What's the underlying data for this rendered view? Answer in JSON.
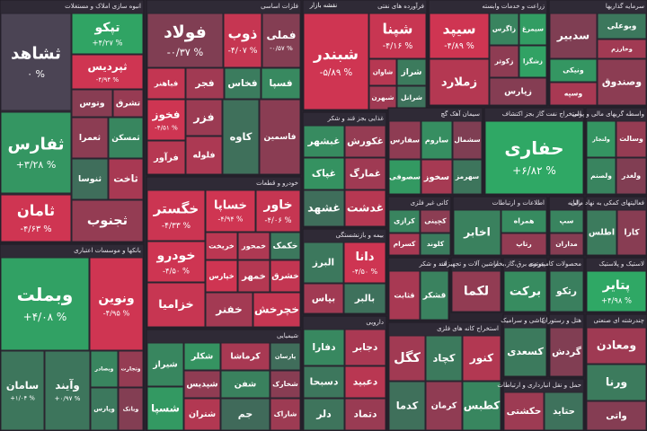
{
  "chart_data": {
    "type": "treemap",
    "title": "نقشه بازار",
    "colors": {
      "positive": "#2fa865",
      "negative": "#cf3552",
      "neutral": "#4b4454",
      "background": "#2f2a36"
    },
    "sectors": [
      {
        "name": "انبوه سازی املاک و مستغلات",
        "tiles": [
          {
            "name": "ثشاهد",
            "value": 0,
            "value_label": "۰ %"
          },
          {
            "name": "تپکو",
            "value": 4.27,
            "value_label": "+۴/۲۷ %"
          },
          {
            "name": "ثپردیس",
            "value": -4.94,
            "value_label": "-۴/۹۴ %"
          },
          {
            "name": "وتوس",
            "value": -0.8
          },
          {
            "name": "تشرق",
            "value": -1.6
          },
          {
            "name": "ثفارس",
            "value": 3.28,
            "value_label": "+۳/۲۸ %"
          },
          {
            "name": "ثامان",
            "value": -4.63,
            "value_label": "-۴/۶۳ %"
          },
          {
            "name": "ثعمرا",
            "value": -1
          },
          {
            "name": "ثمسکن",
            "value": 2.2
          },
          {
            "name": "ثنوسا",
            "value": 0.5
          },
          {
            "name": "ثاخت",
            "value": -2.5
          },
          {
            "name": "ثجنوب",
            "value": -1.4
          }
        ]
      },
      {
        "name": "بانکها و موسسات اعتباری",
        "tiles": [
          {
            "name": "وبملت",
            "value": 4.08,
            "value_label": "+۴/۰۸ %"
          },
          {
            "name": "ونوین",
            "value": -4.95,
            "value_label": "-۴/۹۵ %"
          },
          {
            "name": "سامان",
            "value": 1.04,
            "value_label": "+۱/۰۴ %"
          },
          {
            "name": "وآیند",
            "value": 0.97,
            "value_label": "+۰/۹۷ %"
          },
          {
            "name": "وبصادر",
            "value": 2.1
          },
          {
            "name": "وتجارت",
            "value": -1.5
          },
          {
            "name": "وپارس",
            "value": 1.2
          },
          {
            "name": "وبانک",
            "value": -0.5
          }
        ]
      },
      {
        "name": "فلزات اساسی",
        "tiles": [
          {
            "name": "فولاد",
            "value": -0.37,
            "value_label": "-۰/۳۷ %"
          },
          {
            "name": "ذوب",
            "value": -4.07,
            "value_label": "-۴/۰۷ %"
          },
          {
            "name": "فملی",
            "value": -0.57,
            "value_label": "-۰/۵۷ %"
          },
          {
            "name": "فباهنر",
            "value": -3.9
          },
          {
            "name": "فجر",
            "value": -2.1
          },
          {
            "name": "فخاس",
            "value": 1.5
          },
          {
            "name": "فسپا",
            "value": 2.4
          },
          {
            "name": "فخوز",
            "value": -4.51,
            "value_label": "-۴/۵۱ %"
          },
          {
            "name": "فرآور",
            "value": -3.2
          },
          {
            "name": "فزر",
            "value": -1.8
          },
          {
            "name": "فلوله",
            "value": -2.7
          },
          {
            "name": "کاوه",
            "value": 0.6
          },
          {
            "name": "فاسمین",
            "value": -0.9
          }
        ]
      },
      {
        "name": "خودرو و قطعات",
        "tiles": [
          {
            "name": "خگستر",
            "value": -4.33,
            "value_label": "-۴/۳۳ %"
          },
          {
            "name": "خساپا",
            "value": -4.94,
            "value_label": "-۴/۹۴ %"
          },
          {
            "name": "خاور",
            "value": -4.06,
            "value_label": "-۴/۰۶ %"
          },
          {
            "name": "خودرو",
            "value": -4.5,
            "value_label": "-۴/۵۰ %"
          },
          {
            "name": "خزامیا",
            "value": -4.1
          },
          {
            "name": "خریخت",
            "value": -3.5
          },
          {
            "name": "خمحور",
            "value": -2.8
          },
          {
            "name": "خکمک",
            "value": 1.2
          },
          {
            "name": "خپارس",
            "value": -4.7
          },
          {
            "name": "خمهر",
            "value": -3.1
          },
          {
            "name": "خشرق",
            "value": -3.9
          },
          {
            "name": "خفنر",
            "value": -2.2
          },
          {
            "name": "خچرخش",
            "value": -4
          }
        ]
      },
      {
        "name": "شیمیایی",
        "tiles": [
          {
            "name": "شیراز",
            "value": 2.2
          },
          {
            "name": "شکلر",
            "value": 3.1
          },
          {
            "name": "پارسان",
            "value": 0.4
          },
          {
            "name": "شپدیس",
            "value": -1.2
          },
          {
            "name": "کرماشا",
            "value": -2.5
          },
          {
            "name": "شفن",
            "value": 1.8
          },
          {
            "name": "شخارک",
            "value": -0.8
          },
          {
            "name": "شسپا",
            "value": 3.5
          },
          {
            "name": "شتران",
            "value": -3
          },
          {
            "name": "جم",
            "value": 0.2
          },
          {
            "name": "شاراک",
            "value": -1.9
          }
        ]
      },
      {
        "name": "فرآورده های نفتی",
        "tiles": [
          {
            "name": "شبندر",
            "value": -5.89,
            "value_label": "-۵/۸۹ %"
          },
          {
            "name": "شپنا",
            "value": -4.16,
            "value_label": "-۴/۱۶ %"
          },
          {
            "name": "شاوان",
            "value": -3.2
          },
          {
            "name": "شراز",
            "value": 1.4
          },
          {
            "name": "شبهرن",
            "value": -2
          },
          {
            "name": "شرانل",
            "value": 0.8
          }
        ]
      },
      {
        "name": "زراعت و خدمات وابسته",
        "tiles": [
          {
            "name": "سیپد",
            "value": -4.89,
            "value_label": "-۴/۸۹ %"
          },
          {
            "name": "زملارد",
            "value": -3.1
          },
          {
            "name": "زاگرس",
            "value": 2
          },
          {
            "name": "سیمرغ",
            "value": 3.8
          },
          {
            "name": "زکوثر",
            "value": -1.1
          },
          {
            "name": "زشگزا",
            "value": 4.1
          },
          {
            "name": "زپارس",
            "value": -0.6
          }
        ]
      },
      {
        "name": "سرمایه گذاریها",
        "tiles": [
          {
            "name": "سدبیر",
            "value": -0.3
          },
          {
            "name": "وبوعلی",
            "value": 1.2
          },
          {
            "name": "وخارزم",
            "value": -2.1
          },
          {
            "name": "ونیکی",
            "value": 3.3
          },
          {
            "name": "وسپه",
            "value": -2.5
          },
          {
            "name": "وصندوق",
            "value": -1
          }
        ]
      },
      {
        "name": "استخراج نفت گاز بجز اکتشاف",
        "tiles": [
          {
            "name": "حفاری",
            "value": 6.82,
            "value_label": "+۶/۸۲ %"
          }
        ]
      },
      {
        "name": "واسطه گریهای مالی و پولی",
        "tiles": [
          {
            "name": "ولتجار",
            "value": 3.2
          },
          {
            "name": "وسالت",
            "value": -1.5
          },
          {
            "name": "ولصنم",
            "value": 2
          },
          {
            "name": "ولغدر",
            "value": -0.4
          }
        ]
      },
      {
        "name": "غذایی بجز قند و شکر",
        "tiles": [
          {
            "name": "غبشهر",
            "value": 2.5
          },
          {
            "name": "غکورش",
            "value": -1.5
          },
          {
            "name": "غپاک",
            "value": 3
          },
          {
            "name": "غمارگ",
            "value": -2
          },
          {
            "name": "غشهد",
            "value": 0.5
          },
          {
            "name": "غدشت",
            "value": -3.2
          }
        ]
      },
      {
        "name": "سیمان آهک گچ",
        "tiles": [
          {
            "name": "سفارس",
            "value": -1.1
          },
          {
            "name": "ساروم",
            "value": 2.7
          },
          {
            "name": "سشمال",
            "value": -0.3
          },
          {
            "name": "سصوفی",
            "value": 3.5
          },
          {
            "name": "سخوز",
            "value": -2.4
          },
          {
            "name": "سهرمز",
            "value": 1
          }
        ]
      },
      {
        "name": "کانی غیر فلزی",
        "tiles": [
          {
            "name": "کرازی",
            "value": 2
          },
          {
            "name": "کچینی",
            "value": -1
          },
          {
            "name": "کسرام",
            "value": -2.5
          },
          {
            "name": "کلوند",
            "value": 1.5
          }
        ]
      },
      {
        "name": "اطلاعات و ارتباطات",
        "tiles": [
          {
            "name": "اخابر",
            "value": 1.8
          },
          {
            "name": "همراه",
            "value": 2.5
          },
          {
            "name": "رتاپ",
            "value": -1.3
          }
        ]
      },
      {
        "name": "رایانه",
        "tiles": [
          {
            "name": "سپ",
            "value": 2
          },
          {
            "name": "مداران",
            "value": -0.7
          }
        ]
      },
      {
        "name": "فعالیتهای کمکی به نهاد مالی",
        "tiles": [
          {
            "name": "اطلس",
            "value": 1.4
          },
          {
            "name": "کارا",
            "value": -0.8
          }
        ]
      },
      {
        "name": "بیمه و بازنشستگی",
        "tiles": [
          {
            "name": "البرز",
            "value": 1.2
          },
          {
            "name": "دانا",
            "value": -4.5,
            "value_label": "-۴/۵۰ %"
          },
          {
            "name": "بپاس",
            "value": -2.1
          },
          {
            "name": "بالبر",
            "value": 0.7
          }
        ]
      },
      {
        "name": "قند و شکر",
        "tiles": [
          {
            "name": "قثابت",
            "value": -2.5
          },
          {
            "name": "قشکر",
            "value": 1.9
          }
        ]
      },
      {
        "name": "ماشین آلات و تجهیزات",
        "tiles": [
          {
            "name": "لکما",
            "value": -1.3
          }
        ]
      },
      {
        "name": "عرضه برق،گاز،بخار",
        "tiles": [
          {
            "name": "برکت",
            "value": 2.6
          }
        ]
      },
      {
        "name": "محصولات کامپیوتری",
        "tiles": [
          {
            "name": "رتکو",
            "value": 1.7
          }
        ]
      },
      {
        "name": "لاستیک و پلاستیک",
        "tiles": [
          {
            "name": "پتایر",
            "value": 4.98,
            "value_label": "+۴/۹۸ %"
          }
        ]
      },
      {
        "name": "دارویی",
        "tiles": [
          {
            "name": "دفارا",
            "value": 2.3
          },
          {
            "name": "دجابر",
            "value": -2.6
          },
          {
            "name": "دسبحا",
            "value": 1.1
          },
          {
            "name": "دعبید",
            "value": -3.4
          },
          {
            "name": "دلر",
            "value": 0.9
          },
          {
            "name": "دتماد",
            "value": -1.7
          }
        ]
      },
      {
        "name": "استخراج کانه های فلزی",
        "tiles": [
          {
            "name": "کگل",
            "value": -2.1
          },
          {
            "name": "کچاد",
            "value": 1.3
          },
          {
            "name": "کنور",
            "value": -3
          },
          {
            "name": "کدما",
            "value": 0.6
          },
          {
            "name": "کرمان",
            "value": -1.2
          },
          {
            "name": "کطبس",
            "value": 2.2
          }
        ]
      },
      {
        "name": "کاشی و سرامیک",
        "tiles": [
          {
            "name": "کسعدی",
            "value": 1.3
          }
        ]
      },
      {
        "name": "هتل و رستوران",
        "tiles": [
          {
            "name": "گردش",
            "value": -0.4
          }
        ]
      },
      {
        "name": "حمل و نقل انبارداری و ارتباطات",
        "tiles": [
          {
            "name": "حکشتی",
            "value": -1.9
          },
          {
            "name": "حتاید",
            "value": 0.8
          }
        ]
      },
      {
        "name": "چندرشته ای صنعتی",
        "tiles": [
          {
            "name": "ومعادن",
            "value": -2
          },
          {
            "name": "ورنا",
            "value": 1.4
          },
          {
            "name": "واتی",
            "value": -0.6
          }
        ]
      }
    ]
  }
}
